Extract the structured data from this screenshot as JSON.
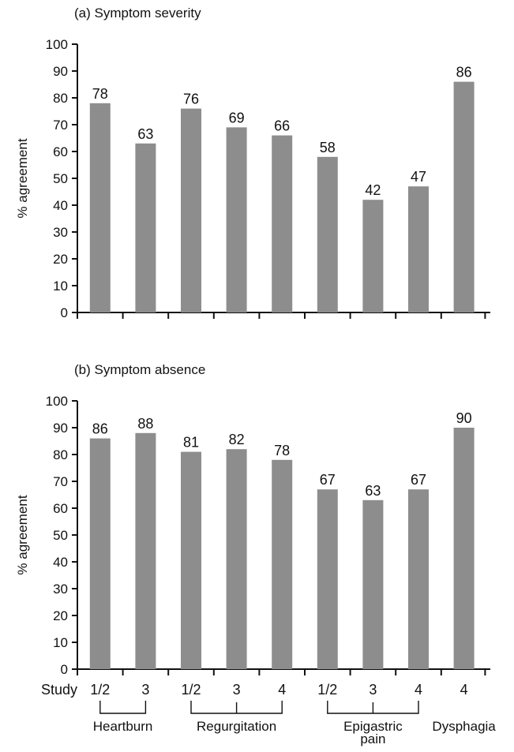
{
  "chart_data": [
    {
      "type": "bar",
      "title": "(a) Symptom severity",
      "ylabel": "% agreement",
      "ylim": [
        0,
        100
      ],
      "yticks": [
        "0",
        "10",
        "20",
        "30",
        "40",
        "50",
        "60",
        "70",
        "80",
        "90",
        "100"
      ],
      "values": [
        78,
        63,
        76,
        69,
        66,
        58,
        42,
        47,
        86
      ],
      "value_labels": [
        "78",
        "63",
        "76",
        "69",
        "66",
        "58",
        "42",
        "47",
        "86"
      ],
      "bar_color": "#8d8d8d"
    },
    {
      "type": "bar",
      "title": "(b) Symptom absence",
      "ylabel": "% agreement",
      "ylim": [
        0,
        100
      ],
      "yticks": [
        "0",
        "10",
        "20",
        "30",
        "40",
        "50",
        "60",
        "70",
        "80",
        "90",
        "100"
      ],
      "xlabel": "Study",
      "categories": [
        "1/2",
        "3",
        "1/2",
        "3",
        "4",
        "1/2",
        "3",
        "4",
        "4"
      ],
      "groups": [
        {
          "label": "Heartburn",
          "bar_indices": [
            0,
            1
          ],
          "bracket": true
        },
        {
          "label": "Regurgitation",
          "bar_indices": [
            2,
            3,
            4
          ],
          "bracket": true
        },
        {
          "label": "Epigastric\npain",
          "bar_indices": [
            5,
            6,
            7
          ],
          "bracket": true
        },
        {
          "label": "Dysphagia",
          "bar_indices": [
            8
          ],
          "bracket": false
        }
      ],
      "values": [
        86,
        88,
        81,
        82,
        78,
        67,
        63,
        67,
        90
      ],
      "value_labels": [
        "86",
        "88",
        "81",
        "82",
        "78",
        "67",
        "63",
        "67",
        "90"
      ],
      "bar_color": "#8d8d8d"
    }
  ]
}
